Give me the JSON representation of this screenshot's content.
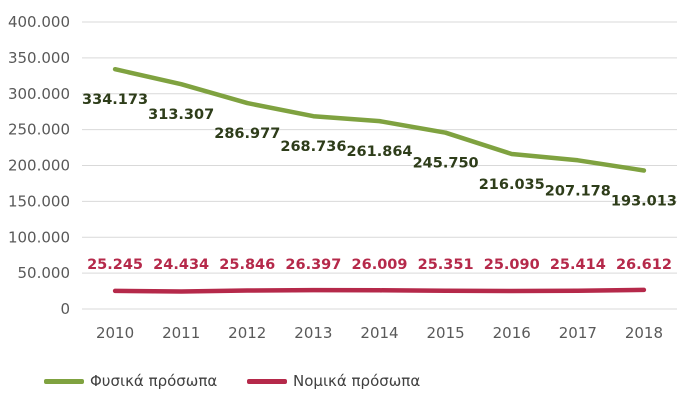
{
  "chart_data": {
    "type": "line",
    "title": "",
    "xlabel": "",
    "ylabel": "",
    "x": [
      "2010",
      "2011",
      "2012",
      "2013",
      "2014",
      "2015",
      "2016",
      "2017",
      "2018"
    ],
    "ylim": [
      0,
      400000
    ],
    "yticks": [
      0,
      50000,
      100000,
      150000,
      200000,
      250000,
      300000,
      350000,
      400000
    ],
    "ytick_labels": [
      "0",
      "50.000",
      "100.000",
      "150.000",
      "200.000",
      "250.000",
      "300.000",
      "350.000",
      "400.000"
    ],
    "grid": true,
    "legend_position": "bottom-left",
    "series": [
      {
        "name": "Φυσικά πρόσωπα",
        "color": "#7fa240",
        "label_color": "#2e3d1a",
        "values": [
          334173,
          313307,
          286977,
          268736,
          261864,
          245750,
          216035,
          207178,
          193013
        ],
        "data_labels": [
          "334.173",
          "313.307",
          "286.977",
          "268.736",
          "261.864",
          "245.750",
          "216.035",
          "207.178",
          "193.013"
        ]
      },
      {
        "name": "Νομικά πρόσωπα",
        "color": "#b5294a",
        "label_color": "#b5294a",
        "values": [
          25245,
          24434,
          25846,
          26397,
          26009,
          25351,
          25090,
          25414,
          26612
        ],
        "data_labels": [
          "25.245",
          "24.434",
          "25.846",
          "26.397",
          "26.009",
          "25.351",
          "25.090",
          "25.414",
          "26.612"
        ]
      }
    ]
  }
}
